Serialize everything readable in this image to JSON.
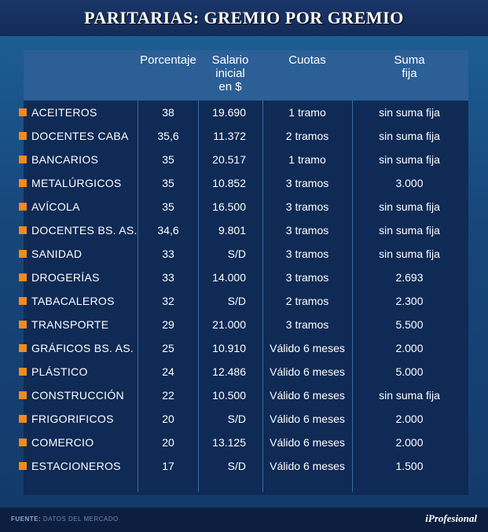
{
  "title": "PARITARIAS: GREMIO POR GREMIO",
  "columns": {
    "porcentaje": "Porcentaje",
    "salario": "Salario\ninicial\nen $",
    "cuotas": "Cuotas",
    "suma_fija": "Suma\nfija"
  },
  "rows": [
    {
      "gremio": "ACEITEROS",
      "porcentaje": "38",
      "salario": "19.690",
      "cuotas": "1 tramo",
      "suma_fija": "sin suma fija"
    },
    {
      "gremio": "DOCENTES CABA",
      "porcentaje": "35,6",
      "salario": "11.372",
      "cuotas": "2 tramos",
      "suma_fija": "sin suma fija"
    },
    {
      "gremio": "BANCARIOS",
      "porcentaje": "35",
      "salario": "20.517",
      "cuotas": "1 tramo",
      "suma_fija": "sin suma fija"
    },
    {
      "gremio": "METALÚRGICOS",
      "porcentaje": "35",
      "salario": "10.852",
      "cuotas": "3 tramos",
      "suma_fija": "3.000"
    },
    {
      "gremio": "AVÍCOLA",
      "porcentaje": "35",
      "salario": "16.500",
      "cuotas": "3 tramos",
      "suma_fija": "sin suma fija"
    },
    {
      "gremio": "DOCENTES BS. AS.",
      "porcentaje": "34,6",
      "salario": "9.801",
      "cuotas": "3 tramos",
      "suma_fija": "sin suma fija"
    },
    {
      "gremio": "SANIDAD",
      "porcentaje": "33",
      "salario": "S/D",
      "cuotas": "3 tramos",
      "suma_fija": "sin suma fija"
    },
    {
      "gremio": "DROGERÍAS",
      "porcentaje": "33",
      "salario": "14.000",
      "cuotas": "3 tramos",
      "suma_fija": "2.693"
    },
    {
      "gremio": "TABACALEROS",
      "porcentaje": "32",
      "salario": "S/D",
      "cuotas": "2 tramos",
      "suma_fija": "2.300"
    },
    {
      "gremio": "TRANSPORTE",
      "porcentaje": "29",
      "salario": "21.000",
      "cuotas": "3 tramos",
      "suma_fija": "5.500"
    },
    {
      "gremio": "GRÁFICOS BS. AS.",
      "porcentaje": "25",
      "salario": "10.910",
      "cuotas": "Válido 6 meses",
      "suma_fija": "2.000"
    },
    {
      "gremio": "PLÁSTICO",
      "porcentaje": "24",
      "salario": "12.486",
      "cuotas": "Válido 6 meses",
      "suma_fija": "5.000"
    },
    {
      "gremio": "CONSTRUCCIÓN",
      "porcentaje": "22",
      "salario": "10.500",
      "cuotas": "Válido 6 meses",
      "suma_fija": "sin suma fija"
    },
    {
      "gremio": "FRIGORIFICOS",
      "porcentaje": "20",
      "salario": "S/D",
      "cuotas": "Válido 6 meses",
      "suma_fija": "2.000"
    },
    {
      "gremio": "COMERCIO",
      "porcentaje": "20",
      "salario": "13.125",
      "cuotas": "Válido 6 meses",
      "suma_fija": "2.000"
    },
    {
      "gremio": "ESTACIONEROS",
      "porcentaje": "17",
      "salario": "S/D",
      "cuotas": "Válido 6 meses",
      "suma_fija": "1.500"
    }
  ],
  "footer": {
    "source_label": "FUENTE:",
    "source_text": "DATOS DEL MERCADO",
    "brand": "iProfesional"
  },
  "colors": {
    "bullet": "#f28a1e",
    "header": "#2b5f95",
    "table_bg": "#0f2a55"
  }
}
